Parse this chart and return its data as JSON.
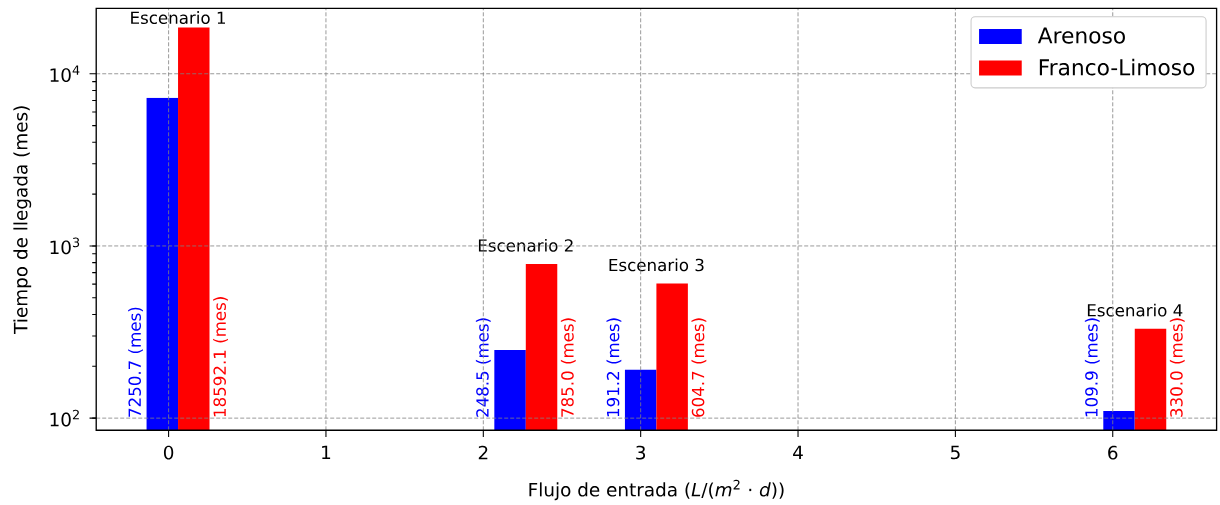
{
  "chart_data": {
    "type": "bar",
    "xlabel": "Flujo de entrada (*L*/(*m*$^{2}$ · *d*))",
    "ylabel": "Tiempo de llegada (mes)",
    "x": [
      0.06,
      2.27,
      3.1,
      6.14
    ],
    "series": [
      {
        "name": "Arenoso",
        "color": "#0000ff",
        "values": [
          7250.7,
          248.5,
          191.2,
          109.9
        ],
        "value_labels": [
          "7250.7 (mes)",
          "248.5 (mes)",
          "191.2 (mes)",
          "109.9 (mes)"
        ]
      },
      {
        "name": "Franco-Limoso",
        "color": "#ff0000",
        "values": [
          18592.1,
          785.0,
          604.7,
          330.0
        ],
        "value_labels": [
          "18592.1 (mes)",
          "785.0 (mes)",
          "604.7 (mes)",
          "330.0 (mes)"
        ]
      }
    ],
    "annotations": [
      "Escenario 1",
      "Escenario 2",
      "Escenario 3",
      "Escenario 4"
    ],
    "xlim": [
      -0.46,
      6.66
    ],
    "ylim": [
      85,
      24000
    ],
    "xticks": [
      0,
      1,
      2,
      3,
      4,
      5,
      6
    ],
    "yticks": [
      {
        "value": 100,
        "label": "10$^{2}$"
      },
      {
        "value": 1000,
        "label": "10$^{3}$"
      },
      {
        "value": 10000,
        "label": "10$^{4}$"
      }
    ],
    "log": true,
    "grid": true,
    "legend": "top right"
  }
}
